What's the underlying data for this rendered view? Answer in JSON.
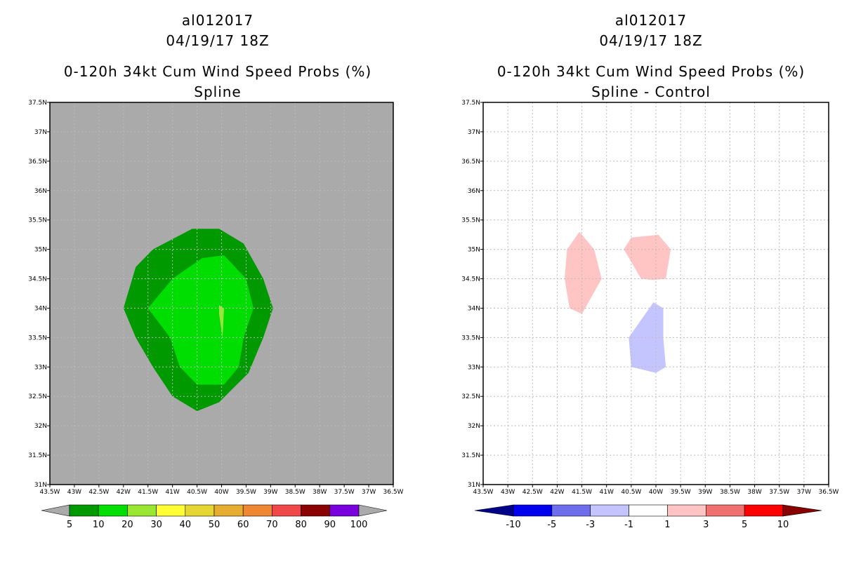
{
  "left_panel": {
    "title_lines": [
      "al012017",
      "04/19/17 18Z",
      "0-120h 34kt Cum Wind Speed Probs (%)",
      "Spline"
    ],
    "background_color": "#aaaaaa",
    "colorbar": {
      "colors": [
        "#009900",
        "#00dd00",
        "#99e633",
        "#ffff33",
        "#e6d633",
        "#e6ad33",
        "#ee8833",
        "#f04848",
        "#880000",
        "#7700dd"
      ],
      "labels": [
        "5",
        "10",
        "20",
        "30",
        "40",
        "50",
        "60",
        "70",
        "80",
        "90",
        "100"
      ],
      "end_colors": [
        "#aaaaaa",
        "#aaaaaa"
      ]
    },
    "contours": [
      {
        "level": "5-10",
        "color": "#009900",
        "points": [
          [
            -41.4,
            35.0
          ],
          [
            -40.6,
            35.35
          ],
          [
            -40.05,
            35.35
          ],
          [
            -39.55,
            35.1
          ],
          [
            -39.15,
            34.5
          ],
          [
            -38.95,
            34.0
          ],
          [
            -39.15,
            33.5
          ],
          [
            -39.45,
            32.9
          ],
          [
            -40.05,
            32.4
          ],
          [
            -40.5,
            32.25
          ],
          [
            -41.0,
            32.5
          ],
          [
            -41.4,
            33.0
          ],
          [
            -41.75,
            33.5
          ],
          [
            -42.0,
            34.0
          ],
          [
            -41.75,
            34.7
          ]
        ]
      },
      {
        "level": "10-20",
        "color": "#00dd00",
        "points": [
          [
            -41.0,
            34.5
          ],
          [
            -40.4,
            34.85
          ],
          [
            -39.95,
            34.9
          ],
          [
            -39.5,
            34.5
          ],
          [
            -39.35,
            34.0
          ],
          [
            -39.55,
            33.5
          ],
          [
            -39.65,
            33.0
          ],
          [
            -39.95,
            32.7
          ],
          [
            -40.5,
            32.7
          ],
          [
            -40.85,
            33.0
          ],
          [
            -41.05,
            33.5
          ],
          [
            -41.5,
            34.0
          ]
        ]
      },
      {
        "level": "20-30",
        "color": "#99e633",
        "points": [
          [
            -40.05,
            34.05
          ],
          [
            -39.95,
            34.0
          ],
          [
            -39.98,
            33.5
          ],
          [
            -40.05,
            33.9
          ]
        ]
      }
    ]
  },
  "right_panel": {
    "title_lines": [
      "al012017",
      "04/19/17 18Z",
      "0-120h 34kt Cum Wind Speed Probs (%)",
      "Spline - Control"
    ],
    "background_color": "#ffffff",
    "colorbar": {
      "colors": [
        "#0000ee",
        "#6f6fee",
        "#c4c4ff",
        "#ffffff",
        "#ffc4c4",
        "#f07070",
        "#ff0000"
      ],
      "labels": [
        "-10",
        "-5",
        "-3",
        "-1",
        "1",
        "3",
        "5",
        "10"
      ],
      "end_colors": [
        "#000088",
        "#880000"
      ]
    },
    "contours": [
      {
        "level": "1-3",
        "color": "#ffc4c4",
        "points": [
          [
            -41.55,
            35.3
          ],
          [
            -41.25,
            35.0
          ],
          [
            -41.1,
            34.5
          ],
          [
            -41.5,
            33.9
          ],
          [
            -41.75,
            34.0
          ],
          [
            -41.85,
            34.5
          ],
          [
            -41.8,
            35.0
          ]
        ]
      },
      {
        "level": "1-3",
        "color": "#ffc4c4",
        "points": [
          [
            -40.5,
            35.2
          ],
          [
            -39.95,
            35.25
          ],
          [
            -39.7,
            35.0
          ],
          [
            -39.8,
            34.5
          ],
          [
            -40.05,
            34.48
          ],
          [
            -40.3,
            34.5
          ],
          [
            -40.65,
            35.0
          ]
        ]
      },
      {
        "level": "-3--1",
        "color": "#c4c4ff",
        "points": [
          [
            -40.05,
            34.1
          ],
          [
            -39.85,
            34.0
          ],
          [
            -39.85,
            33.5
          ],
          [
            -39.8,
            33.0
          ],
          [
            -40.0,
            32.9
          ],
          [
            -40.5,
            33.0
          ],
          [
            -40.55,
            33.5
          ],
          [
            -40.3,
            33.8
          ]
        ]
      }
    ]
  },
  "map": {
    "lon_min": -43.5,
    "lon_max": -36.5,
    "lat_min": 31,
    "lat_max": 37.5,
    "lon_ticks": [
      -43.5,
      -43,
      -42.5,
      -42,
      -41.5,
      -41,
      -40.5,
      -40,
      -39.5,
      -39,
      -38.5,
      -38,
      -37.5,
      -37,
      -36.5
    ],
    "lon_labels": [
      "43.5W",
      "43W",
      "42.5W",
      "42W",
      "41.5W",
      "41W",
      "40.5W",
      "40W",
      "39.5W",
      "39W",
      "38.5W",
      "38W",
      "37.5W",
      "37W",
      "36.5W"
    ],
    "lat_ticks": [
      31,
      31.5,
      32,
      32.5,
      33,
      33.5,
      34,
      34.5,
      35,
      35.5,
      36,
      36.5,
      37,
      37.5
    ],
    "lat_labels": [
      "31N",
      "31.5N",
      "32N",
      "32.5N",
      "33N",
      "33.5N",
      "34N",
      "34.5N",
      "35N",
      "35.5N",
      "36N",
      "36.5N",
      "37N",
      "37.5N"
    ],
    "grid_color": "#bbbbbb"
  }
}
